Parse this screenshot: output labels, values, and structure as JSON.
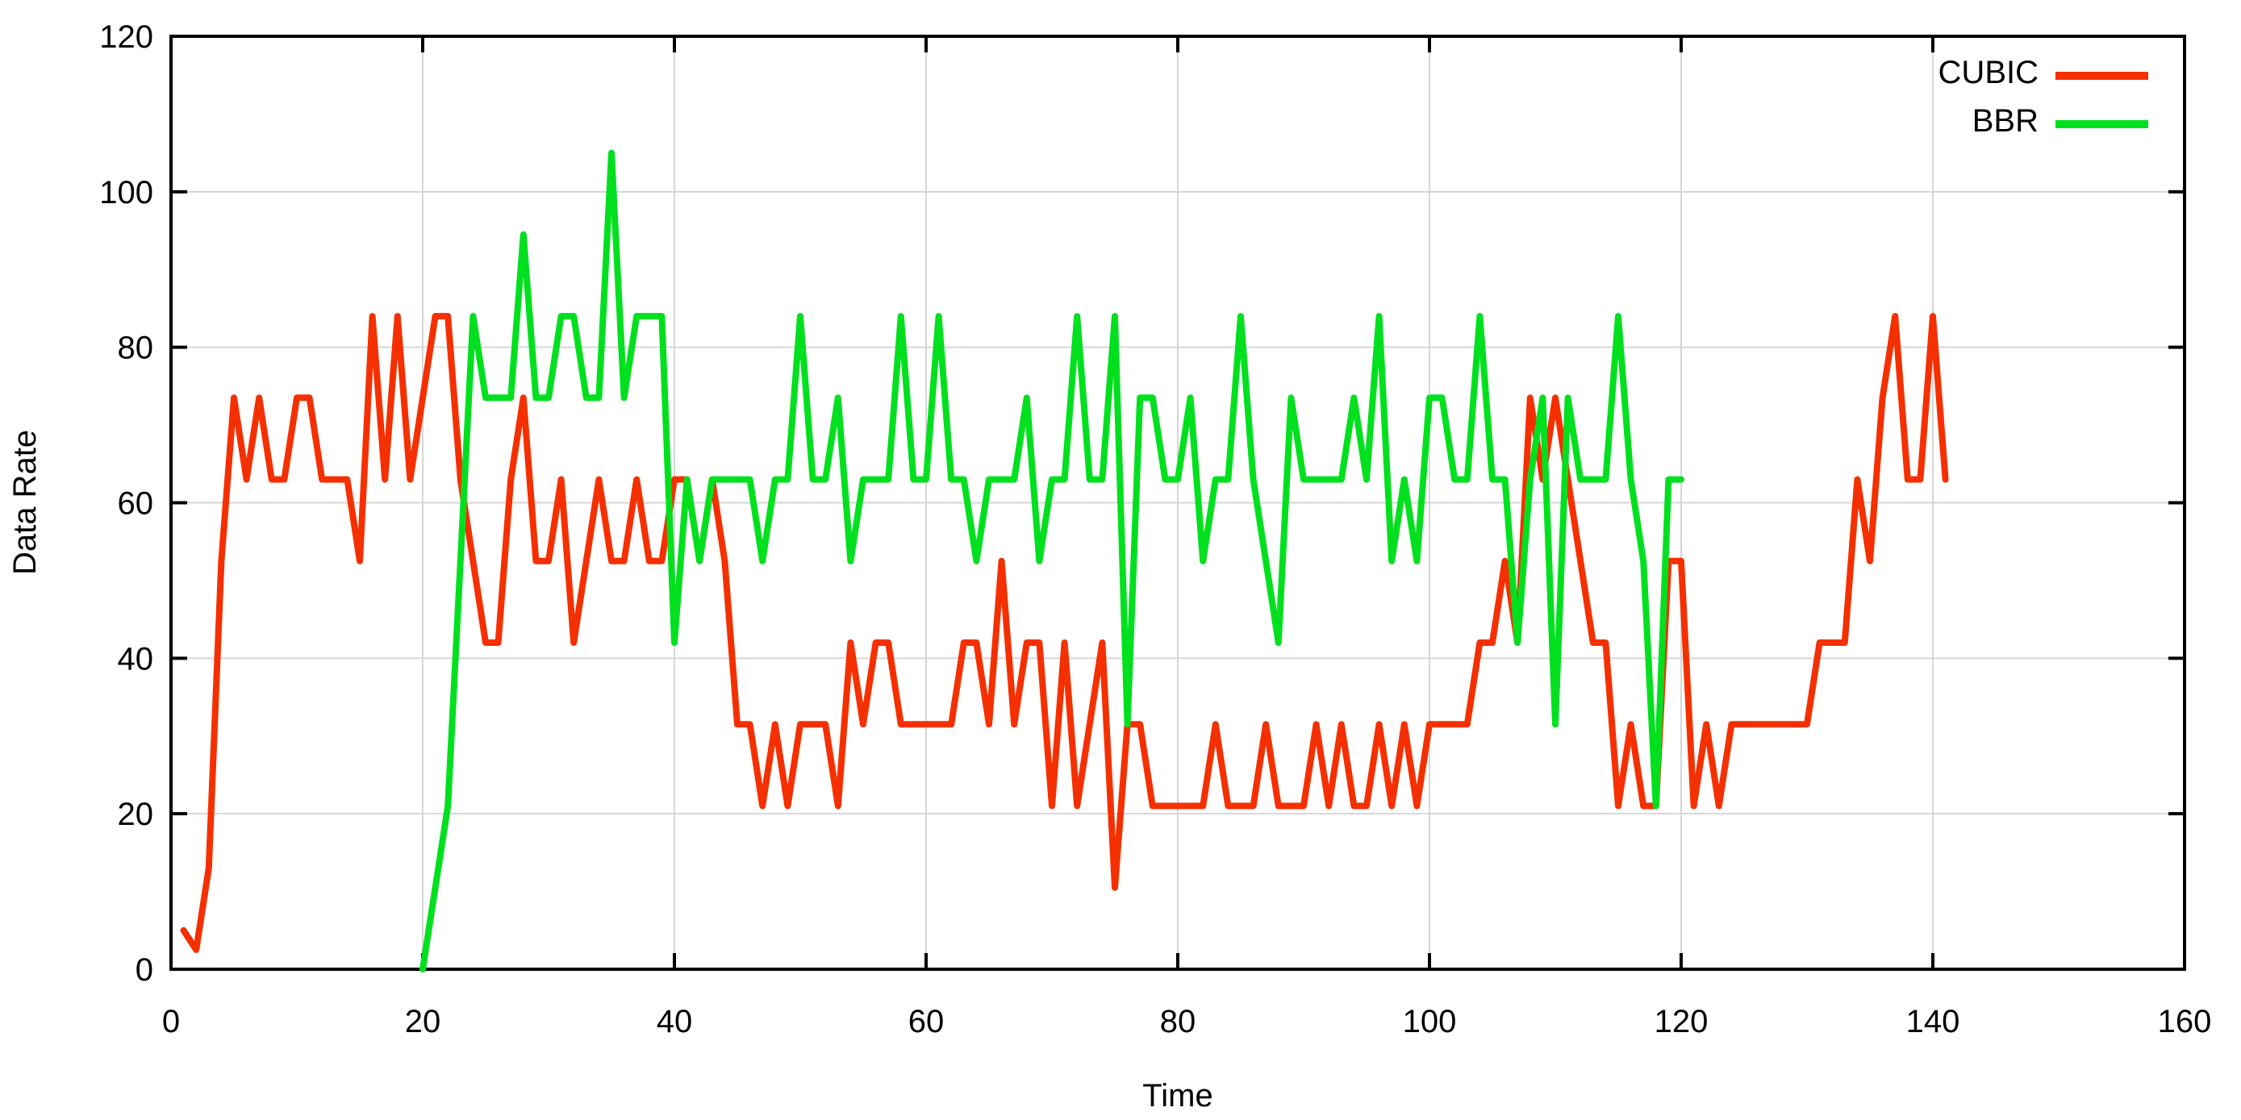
{
  "chart_data": {
    "type": "line",
    "title": "",
    "xlabel": "Time",
    "ylabel": "Data Rate",
    "xlim": [
      0,
      160
    ],
    "ylim": [
      0,
      120
    ],
    "xticks": [
      0,
      20,
      40,
      60,
      80,
      100,
      120,
      140,
      160
    ],
    "yticks": [
      0,
      20,
      40,
      60,
      80,
      100,
      120
    ],
    "grid": true,
    "grid_color": "#d6d6d6",
    "axis_color": "#000000",
    "background_color": "#ffffff",
    "legend_position": "top-right",
    "series": [
      {
        "name": "CUBIC",
        "color": "#f53000",
        "x": [
          1,
          2,
          3,
          4,
          5,
          6,
          7,
          8,
          9,
          10,
          11,
          12,
          13,
          14,
          15,
          16,
          17,
          18,
          19,
          20,
          21,
          22,
          23,
          24,
          25,
          26,
          27,
          28,
          29,
          30,
          31,
          32,
          33,
          34,
          35,
          36,
          37,
          38,
          39,
          40,
          41,
          42,
          43,
          44,
          45,
          46,
          47,
          48,
          49,
          50,
          51,
          52,
          53,
          54,
          55,
          56,
          57,
          58,
          59,
          60,
          61,
          62,
          63,
          64,
          65,
          66,
          67,
          68,
          69,
          70,
          71,
          72,
          73,
          74,
          75,
          76,
          77,
          78,
          79,
          80,
          81,
          82,
          83,
          84,
          85,
          86,
          87,
          88,
          89,
          90,
          91,
          92,
          93,
          94,
          95,
          96,
          97,
          98,
          99,
          100,
          101,
          102,
          103,
          104,
          105,
          106,
          107,
          108,
          109,
          110,
          111,
          112,
          113,
          114,
          115,
          116,
          117,
          118,
          119,
          120,
          121,
          122,
          123,
          124,
          125,
          126,
          127,
          128,
          129,
          130,
          131,
          132,
          133,
          134,
          135,
          136,
          137,
          138,
          139,
          140,
          141
        ],
        "y": [
          5,
          2.5,
          13,
          52.5,
          73.5,
          63,
          73.5,
          63,
          63,
          73.5,
          73.5,
          63,
          63,
          63,
          52.5,
          84,
          63,
          84,
          63,
          73.5,
          84,
          84,
          63,
          52.5,
          42,
          42,
          63,
          73.5,
          52.5,
          52.5,
          63,
          42,
          52.5,
          63,
          52.5,
          52.5,
          63,
          52.5,
          52.5,
          63,
          63,
          52.5,
          63,
          52.5,
          31.5,
          31.5,
          21,
          31.5,
          21,
          31.5,
          31.5,
          31.5,
          21,
          42,
          31.5,
          42,
          42,
          31.5,
          31.5,
          31.5,
          31.5,
          31.5,
          42,
          42,
          31.5,
          52.5,
          31.5,
          42,
          42,
          21,
          42,
          21,
          31.5,
          42,
          10.5,
          31.5,
          31.5,
          21,
          21,
          21,
          21,
          21,
          31.5,
          21,
          21,
          21,
          31.5,
          21,
          21,
          21,
          31.5,
          21,
          31.5,
          21,
          21,
          31.5,
          21,
          31.5,
          21,
          31.5,
          31.5,
          31.5,
          31.5,
          42,
          42,
          52.5,
          42,
          73.5,
          63,
          73.5,
          63,
          52.5,
          42,
          42,
          21,
          31.5,
          21,
          21,
          52.5,
          52.5,
          21,
          31.5,
          21,
          31.5,
          31.5,
          31.5,
          31.5,
          31.5,
          31.5,
          31.5,
          42,
          42,
          42,
          63,
          52.5,
          73.5,
          84,
          63,
          63,
          84,
          63
        ]
      },
      {
        "name": "BBR",
        "color": "#00e01e",
        "x": [
          20,
          21,
          22,
          23,
          24,
          25,
          26,
          27,
          28,
          29,
          30,
          31,
          32,
          33,
          34,
          35,
          36,
          37,
          38,
          39,
          40,
          41,
          42,
          43,
          44,
          45,
          46,
          47,
          48,
          49,
          50,
          51,
          52,
          53,
          54,
          55,
          56,
          57,
          58,
          59,
          60,
          61,
          62,
          63,
          64,
          65,
          66,
          67,
          68,
          69,
          70,
          71,
          72,
          73,
          74,
          75,
          76,
          77,
          78,
          79,
          80,
          81,
          82,
          83,
          84,
          85,
          86,
          87,
          88,
          89,
          90,
          91,
          92,
          93,
          94,
          95,
          96,
          97,
          98,
          99,
          100,
          101,
          102,
          103,
          104,
          105,
          106,
          107,
          108,
          109,
          110,
          111,
          112,
          113,
          114,
          115,
          116,
          117,
          118,
          119,
          120
        ],
        "y": [
          0,
          10.5,
          21,
          52.5,
          84,
          73.5,
          73.5,
          73.5,
          94.5,
          73.5,
          73.5,
          84,
          84,
          73.5,
          73.5,
          105,
          73.5,
          84,
          84,
          84,
          42,
          63,
          52.5,
          63,
          63,
          63,
          63,
          52.5,
          63,
          63,
          84,
          63,
          63,
          73.5,
          52.5,
          63,
          63,
          63,
          84,
          63,
          63,
          84,
          63,
          63,
          52.5,
          63,
          63,
          63,
          73.5,
          52.5,
          63,
          63,
          84,
          63,
          63,
          84,
          31.5,
          73.5,
          73.5,
          63,
          63,
          73.5,
          52.5,
          63,
          63,
          84,
          63,
          52.5,
          42,
          73.5,
          63,
          63,
          63,
          63,
          73.5,
          63,
          84,
          52.5,
          63,
          52.5,
          73.5,
          73.5,
          63,
          63,
          84,
          63,
          63,
          42,
          63,
          73.5,
          31.5,
          73.5,
          63,
          63,
          63,
          84,
          63,
          52.5,
          21,
          63,
          63
        ]
      }
    ]
  }
}
